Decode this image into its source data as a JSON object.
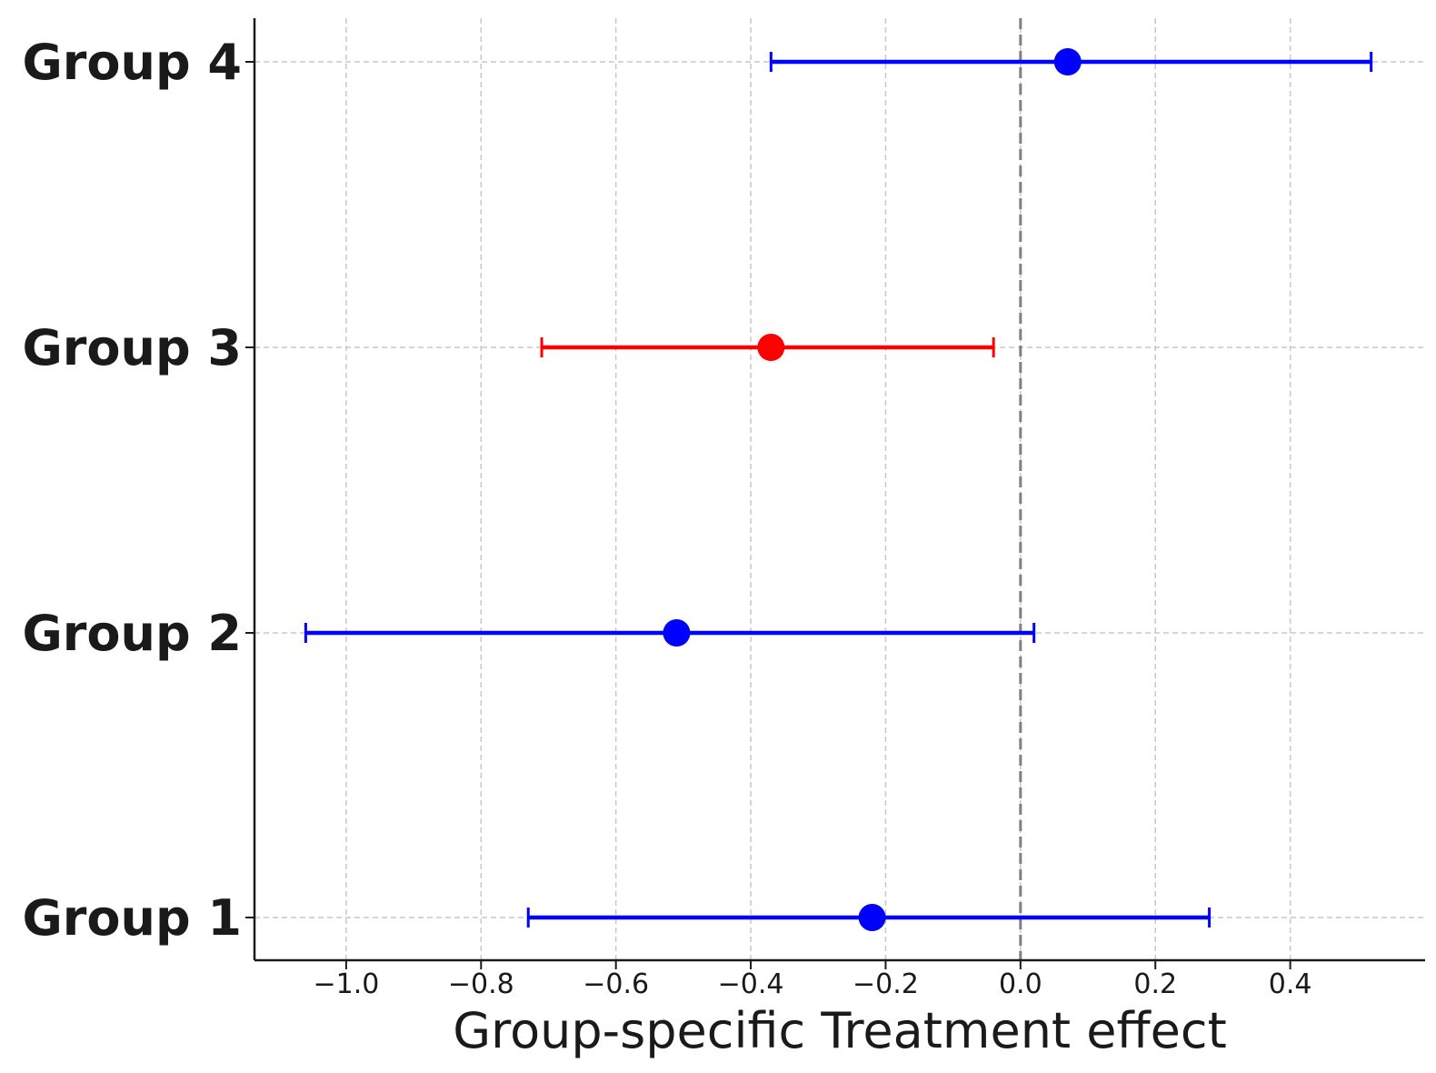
{
  "chart_data": {
    "type": "errorbar",
    "title": "",
    "xlabel": "Group-specific Treatment effect",
    "ylabel": "",
    "xlim": [
      -1.136,
      0.6
    ],
    "x_ticks": [
      -1.0,
      -0.8,
      -0.6,
      -0.4,
      -0.2,
      0.0,
      0.2,
      0.4
    ],
    "x_tick_labels": [
      "−1.0",
      "−0.8",
      "−0.6",
      "−0.4",
      "−0.2",
      "0.0",
      "0.2",
      "0.4"
    ],
    "reference_line": {
      "x": 0.0,
      "style": "dashed",
      "color": "#808080"
    },
    "grid": true,
    "groups": [
      {
        "label": "Group 1",
        "estimate": -0.22,
        "lower": -0.73,
        "upper": 0.28,
        "color": "#0000ff"
      },
      {
        "label": "Group 2",
        "estimate": -0.51,
        "lower": -1.06,
        "upper": 0.02,
        "color": "#0000ff"
      },
      {
        "label": "Group 3",
        "estimate": -0.37,
        "lower": -0.71,
        "upper": -0.04,
        "color": "#ff0000"
      },
      {
        "label": "Group 4",
        "estimate": 0.07,
        "lower": -0.37,
        "upper": 0.52,
        "color": "#0000ff"
      }
    ]
  }
}
